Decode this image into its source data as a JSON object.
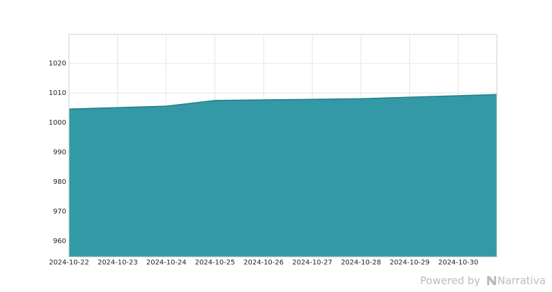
{
  "chart_data": {
    "type": "area",
    "x": [
      "2024-10-22",
      "2024-10-23",
      "2024-10-24",
      "2024-10-25",
      "2024-10-26",
      "2024-10-27",
      "2024-10-28",
      "2024-10-29",
      "2024-10-30",
      "2024-10-30T19:00"
    ],
    "values": [
      1004.6,
      1005.1,
      1005.6,
      1007.5,
      1007.7,
      1007.9,
      1008.1,
      1008.6,
      1009.1,
      1009.5
    ],
    "color": "#3399a6",
    "line_color": "#227d87",
    "xlim": [
      "2024-10-22",
      "2024-10-30T19:00"
    ],
    "xticks": [
      "2024-10-22",
      "2024-10-23",
      "2024-10-24",
      "2024-10-25",
      "2024-10-26",
      "2024-10-27",
      "2024-10-28",
      "2024-10-29",
      "2024-10-30"
    ],
    "ylim": [
      954.7,
      1029.8
    ],
    "yticks": [
      960,
      970,
      980,
      990,
      1000,
      1010,
      1020
    ],
    "grid": true
  },
  "footer": {
    "text": "Powered by",
    "brand": "Narrativa"
  }
}
